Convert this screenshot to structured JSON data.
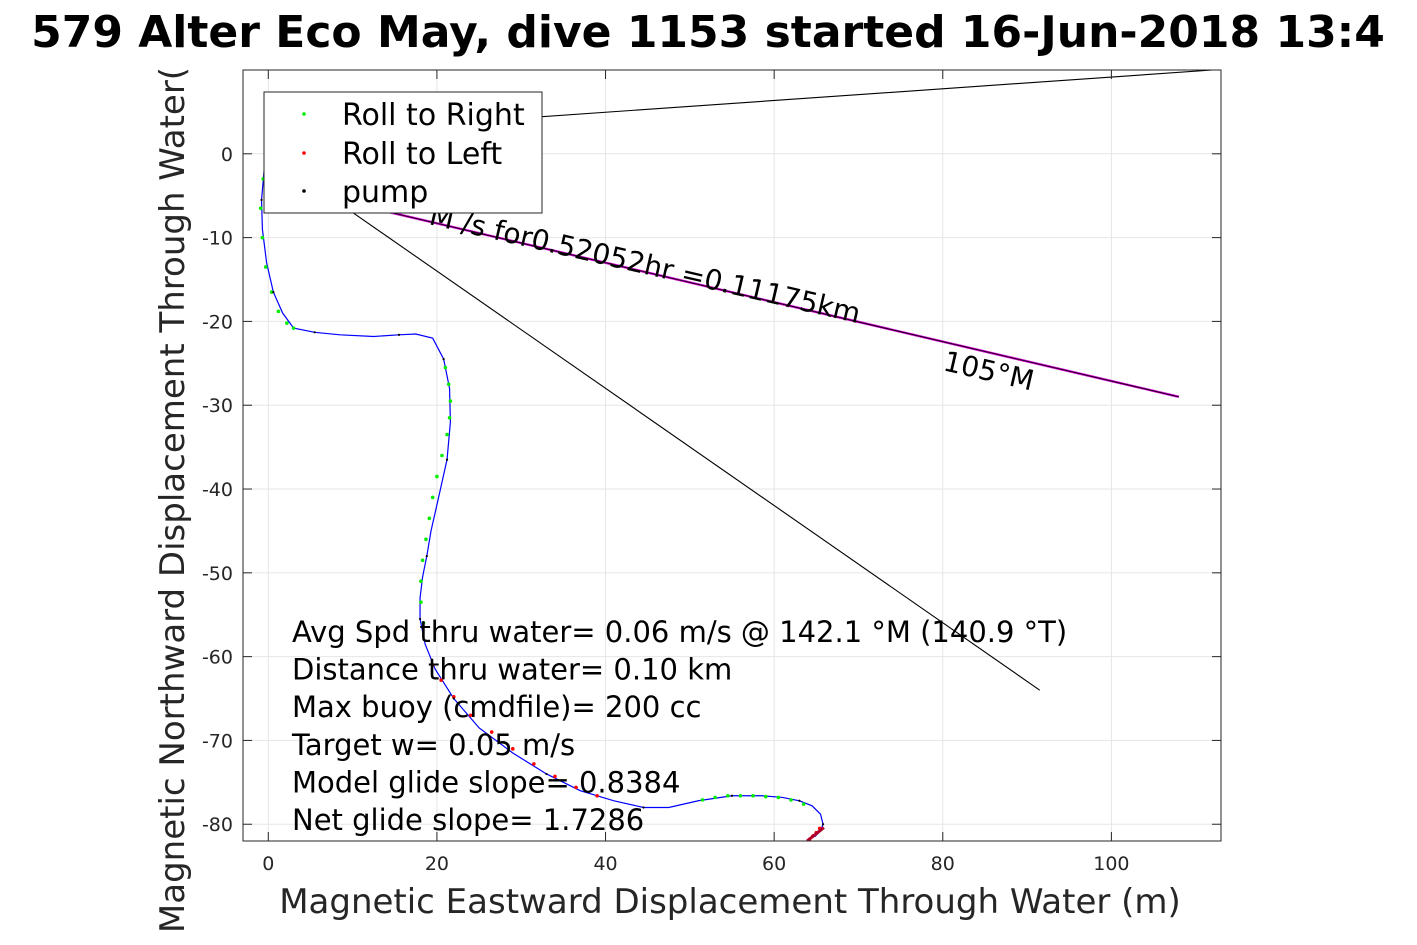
{
  "chart_data": {
    "type": "line",
    "title": "579 Alter Eco May, dive 1153 started 16-Jun-2018 13:4",
    "xlabel": "Magnetic Eastward Displacement Through Water (m)",
    "ylabel": "Magnetic Northward Displacement Through Water(",
    "xlim": [
      -3,
      113
    ],
    "ylim": [
      -82,
      10
    ],
    "xticks": [
      0,
      20,
      40,
      60,
      80,
      100
    ],
    "yticks": [
      0,
      -10,
      -20,
      -30,
      -40,
      -50,
      -60,
      -70,
      -80
    ],
    "grid": true,
    "legend_position": "top-left",
    "legend": [
      {
        "label": "Roll to Right",
        "color": "#00ee00"
      },
      {
        "label": "Roll to Left",
        "color": "#ff0000"
      },
      {
        "label": "pump",
        "color": "#000000"
      }
    ],
    "colors": {
      "track": "#0000ff",
      "right": "#00ee00",
      "left": "#ff0000",
      "pump": "#000000",
      "current": "#cc00cc",
      "guide": "#000000",
      "surface": "#b0002a"
    },
    "track": {
      "x": [
        -0.5,
        -0.8,
        -0.7,
        -0.2,
        0.6,
        1.7,
        3.0,
        5.5,
        8.5,
        12.5,
        15.5,
        17.5,
        19.5,
        20.8,
        21.5,
        21.6,
        21.2,
        20.2,
        19.3,
        18.8,
        18.3,
        18.0,
        18.0,
        18.6,
        19.8,
        22.0,
        25.0,
        29.0,
        33.0,
        37.0,
        41.0,
        44.5,
        47.5,
        51.0,
        55.0,
        58.5,
        61.0,
        63.0,
        64.5,
        65.5,
        65.8,
        65.5,
        64.8
      ],
      "y": [
        -2.0,
        -5.5,
        -9.0,
        -13.0,
        -16.5,
        -19.0,
        -20.8,
        -21.3,
        -21.6,
        -21.8,
        -21.6,
        -21.5,
        -22.0,
        -24.5,
        -28.0,
        -32.0,
        -36.5,
        -41.0,
        -45.0,
        -48.0,
        -50.5,
        -53.0,
        -55.5,
        -58.5,
        -61.5,
        -65.0,
        -68.5,
        -71.5,
        -74.0,
        -76.0,
        -77.2,
        -78.0,
        -78.0,
        -77.2,
        -76.6,
        -76.6,
        -76.8,
        -77.2,
        -77.8,
        -78.8,
        -80.0,
        -80.8,
        -81.5
      ]
    },
    "roll_to_right": {
      "x": [
        -0.6,
        -0.9,
        -0.7,
        -0.3,
        0.4,
        1.2,
        2.2,
        3.0,
        21.0,
        21.4,
        21.6,
        21.5,
        21.2,
        20.6,
        20.0,
        19.5,
        19.1,
        18.7,
        18.3,
        18.1,
        18.1,
        18.4,
        51.5,
        53.0,
        54.5,
        56.0,
        57.5,
        59.0,
        60.5,
        62.0,
        63.5
      ],
      "y": [
        -3.0,
        -6.5,
        -10.0,
        -13.5,
        -16.5,
        -18.8,
        -20.2,
        -20.8,
        -25.5,
        -27.5,
        -29.5,
        -31.5,
        -33.5,
        -36.0,
        -38.5,
        -41.0,
        -43.5,
        -46.0,
        -48.5,
        -51.0,
        -53.5,
        -56.0,
        -77.1,
        -76.8,
        -76.6,
        -76.6,
        -76.6,
        -76.7,
        -76.8,
        -77.1,
        -77.6
      ]
    },
    "roll_to_left": {
      "x": [
        19.5,
        20.5,
        22.0,
        24.0,
        26.5,
        29.0,
        31.5,
        34.0,
        36.5,
        39.0,
        64.2,
        64.6,
        65.0,
        65.4
      ],
      "y": [
        -61.0,
        -62.8,
        -64.8,
        -67.0,
        -69.0,
        -71.0,
        -72.8,
        -74.3,
        -75.6,
        -76.6,
        -81.8,
        -81.4,
        -81.0,
        -80.5
      ]
    },
    "surface_drift": {
      "x": [
        63.9,
        65.9
      ],
      "y": [
        -82.0,
        -80.4
      ]
    },
    "current_line": {
      "x": [
        6,
        108
      ],
      "y": [
        -5,
        -29
      ]
    },
    "line_to_ne": {
      "x": [
        12,
        112
      ],
      "y": [
        3,
        10
      ]
    },
    "line_to_se": {
      "x": [
        10,
        91.5
      ],
      "y": [
        -7,
        -64
      ]
    },
    "current_annotation": "M        /s for0.52052hr =0.11175km",
    "heading_annotation": "105°M",
    "stats": [
      "Avg Spd thru water=  0.06 m/s @ 142.1 °M (140.9 °T)",
      "Distance thru water=  0.10 km",
      "Max buoy (cmdfile)= 200 cc",
      "Target w= 0.05 m/s",
      "Model glide slope= 0.8384",
      "Net glide slope= 1.7286"
    ]
  }
}
